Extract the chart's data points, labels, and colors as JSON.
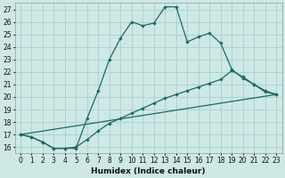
{
  "xlabel": "Humidex (Indice chaleur)",
  "background_color": "#cde8e5",
  "grid_color": "#aacfcc",
  "line_color": "#1a6b60",
  "xlim": [
    -0.5,
    23.5
  ],
  "ylim": [
    15.5,
    27.5
  ],
  "xticks": [
    0,
    1,
    2,
    3,
    4,
    5,
    6,
    7,
    8,
    9,
    10,
    11,
    12,
    13,
    14,
    15,
    16,
    17,
    18,
    19,
    20,
    21,
    22,
    23
  ],
  "yticks": [
    16,
    17,
    18,
    19,
    20,
    21,
    22,
    23,
    24,
    25,
    26,
    27
  ],
  "line1_x": [
    0,
    1,
    2,
    3,
    4,
    5,
    6,
    7,
    8,
    9,
    10,
    11,
    12,
    13,
    14,
    15,
    16,
    17,
    18,
    19,
    20,
    21,
    22,
    23
  ],
  "line1_y": [
    17.0,
    16.8,
    16.4,
    15.9,
    15.9,
    15.9,
    18.3,
    20.5,
    23.0,
    24.7,
    26.0,
    25.7,
    25.9,
    27.2,
    27.2,
    24.4,
    24.8,
    25.1,
    24.3,
    22.2,
    21.5,
    21.0,
    20.4,
    20.2
  ],
  "line2_x": [
    0,
    1,
    2,
    3,
    4,
    5,
    6,
    7,
    8,
    9,
    10,
    11,
    12,
    13,
    14,
    15,
    16,
    17,
    18,
    19,
    20,
    21,
    22,
    23
  ],
  "line2_y": [
    17.0,
    16.8,
    16.4,
    15.9,
    15.9,
    16.0,
    16.6,
    17.3,
    17.9,
    18.3,
    18.7,
    19.1,
    19.5,
    19.9,
    20.2,
    20.5,
    20.8,
    21.1,
    21.4,
    22.1,
    21.6,
    21.0,
    20.5,
    20.2
  ],
  "line3_x": [
    0,
    23
  ],
  "line3_y": [
    17.0,
    20.2
  ]
}
